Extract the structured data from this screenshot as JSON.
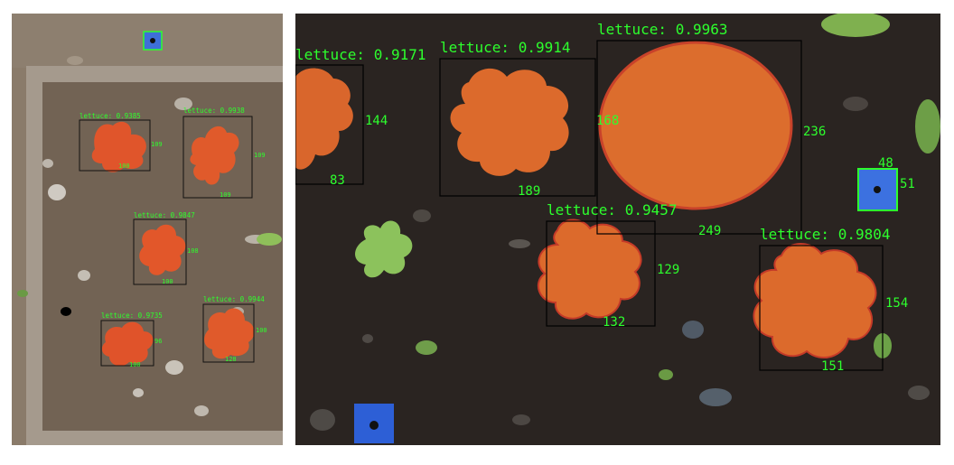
{
  "left_panel": {
    "detections": [
      {
        "label": "lettuce: 0.9385",
        "width": "100",
        "height": "109"
      },
      {
        "label": "lettuce: 0.9938",
        "width": "109",
        "height": "109"
      },
      {
        "label": "lettuce: 0.9847",
        "width": "100",
        "height": "108"
      },
      {
        "label": "lettuce: 0.9735",
        "width": "100",
        "height": "96"
      },
      {
        "label": "lettuce: 0.9944",
        "width": "128",
        "height": "100"
      }
    ]
  },
  "right_panel": {
    "detections": [
      {
        "label": "lettuce: 0.9171",
        "width": "83",
        "height": "144"
      },
      {
        "label": "lettuce: 0.9914",
        "width": "189",
        "height": "168"
      },
      {
        "label": "lettuce: 0.9963",
        "width": "249",
        "height": "236"
      },
      {
        "label": "lettuce: 0.9457",
        "width": "132",
        "height": "129"
      },
      {
        "label": "lettuce: 0.9804",
        "width": "151",
        "height": "154"
      }
    ],
    "marker": {
      "width": "48",
      "height": "51"
    }
  },
  "colors": {
    "box": "#000000",
    "text": "#2dff2d",
    "plant": "#d9642a",
    "soil": "#2a2421",
    "marker": "#2d5fd6"
  }
}
